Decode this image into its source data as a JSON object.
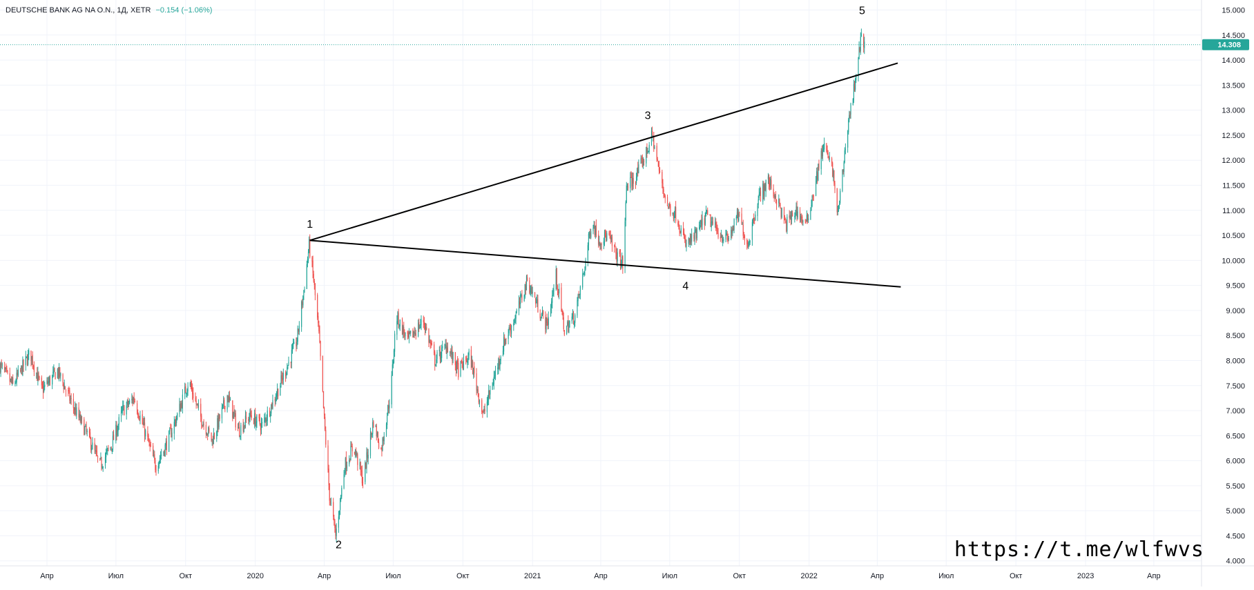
{
  "header": {
    "symbol": "DEUTSCHE BANK AG NA O.N., 1Д, XETR",
    "change": "−0.154 (−1.06%)"
  },
  "watermark": "https://t.me/wlfwvs",
  "colors": {
    "up": "#26a69a",
    "down": "#ef5350",
    "grid": "#f0f3fa",
    "axis_text": "#131722",
    "price_line": "#26a69a",
    "pattern_line": "#000000"
  },
  "chart_data": {
    "type": "candlestick",
    "x_axis_labels": [
      "Апр",
      "Июл",
      "Окт",
      "2020",
      "Апр",
      "Июл",
      "Окт",
      "2021",
      "Апр",
      "Июл",
      "Окт",
      "2022",
      "Апр",
      "Июл",
      "Окт",
      "2023",
      "Апр"
    ],
    "x_axis_dates": [
      "2019-04",
      "2019-07",
      "2019-10",
      "2020-01",
      "2020-04",
      "2020-07",
      "2020-10",
      "2021-01",
      "2021-04",
      "2021-07",
      "2021-10",
      "2022-01",
      "2022-04",
      "2022-07",
      "2022-10",
      "2023-01",
      "2023-04"
    ],
    "x_range": [
      "2019-01-29",
      "2023-06-03"
    ],
    "y_ticks": [
      "15.000",
      "14.500",
      "14.000",
      "13.500",
      "13.000",
      "12.500",
      "12.000",
      "11.500",
      "11.000",
      "10.500",
      "10.000",
      "9.500",
      "9.000",
      "8.500",
      "8.000",
      "7.500",
      "7.000",
      "6.500",
      "6.000",
      "5.500",
      "5.000",
      "4.500",
      "4.000"
    ],
    "ylim": [
      3.9,
      15.2
    ],
    "last_price": 14.308,
    "last_price_label": "14.308",
    "price_path": [
      [
        "2019-01-29",
        7.9
      ],
      [
        "2019-02-15",
        7.5
      ],
      [
        "2019-03-10",
        8.15
      ],
      [
        "2019-03-25",
        7.4
      ],
      [
        "2019-04-15",
        7.8
      ],
      [
        "2019-05-05",
        7.1
      ],
      [
        "2019-05-25",
        6.5
      ],
      [
        "2019-06-10",
        5.9
      ],
      [
        "2019-06-25",
        6.3
      ],
      [
        "2019-07-10",
        7.0
      ],
      [
        "2019-07-25",
        7.25
      ],
      [
        "2019-08-10",
        6.5
      ],
      [
        "2019-08-22",
        5.9
      ],
      [
        "2019-09-05",
        6.3
      ],
      [
        "2019-09-20",
        6.9
      ],
      [
        "2019-10-05",
        7.6
      ],
      [
        "2019-10-20",
        6.9
      ],
      [
        "2019-11-05",
        6.4
      ],
      [
        "2019-11-25",
        7.3
      ],
      [
        "2019-12-10",
        6.6
      ],
      [
        "2019-12-25",
        6.9
      ],
      [
        "2020-01-10",
        6.7
      ],
      [
        "2020-01-25",
        7.2
      ],
      [
        "2020-02-10",
        7.8
      ],
      [
        "2020-02-25",
        8.4
      ],
      [
        "2020-03-05",
        9.4
      ],
      [
        "2020-03-12",
        10.3
      ],
      [
        "2020-03-18",
        9.6
      ],
      [
        "2020-03-25",
        8.5
      ],
      [
        "2020-04-01",
        6.8
      ],
      [
        "2020-04-08",
        5.3
      ],
      [
        "2020-04-16",
        4.5
      ],
      [
        "2020-04-28",
        5.9
      ],
      [
        "2020-05-10",
        6.3
      ],
      [
        "2020-05-22",
        5.6
      ],
      [
        "2020-06-05",
        6.8
      ],
      [
        "2020-06-15",
        6.2
      ],
      [
        "2020-06-28",
        7.4
      ],
      [
        "2020-07-05",
        8.9
      ],
      [
        "2020-07-20",
        8.4
      ],
      [
        "2020-08-10",
        8.8
      ],
      [
        "2020-08-25",
        8.0
      ],
      [
        "2020-09-10",
        8.3
      ],
      [
        "2020-09-25",
        7.8
      ],
      [
        "2020-10-10",
        8.1
      ],
      [
        "2020-10-28",
        6.9
      ],
      [
        "2020-11-10",
        7.6
      ],
      [
        "2020-11-25",
        8.4
      ],
      [
        "2020-12-10",
        8.9
      ],
      [
        "2020-12-25",
        9.6
      ],
      [
        "2021-01-10",
        9.0
      ],
      [
        "2021-01-20",
        8.7
      ],
      [
        "2021-02-01",
        9.7
      ],
      [
        "2021-02-12",
        8.6
      ],
      [
        "2021-02-26",
        8.9
      ],
      [
        "2021-03-10",
        9.8
      ],
      [
        "2021-03-20",
        10.8
      ],
      [
        "2021-03-30",
        10.4
      ],
      [
        "2021-04-10",
        10.5
      ],
      [
        "2021-04-22",
        10.1
      ],
      [
        "2021-05-01",
        9.9
      ],
      [
        "2021-05-05",
        11.5
      ],
      [
        "2021-05-15",
        11.6
      ],
      [
        "2021-05-30",
        12.1
      ],
      [
        "2021-06-08",
        12.5
      ],
      [
        "2021-06-18",
        11.7
      ],
      [
        "2021-06-28",
        11.1
      ],
      [
        "2021-07-10",
        10.9
      ],
      [
        "2021-07-22",
        10.3
      ],
      [
        "2021-08-05",
        10.5
      ],
      [
        "2021-08-18",
        10.9
      ],
      [
        "2021-09-01",
        10.6
      ],
      [
        "2021-09-15",
        10.4
      ],
      [
        "2021-09-30",
        10.9
      ],
      [
        "2021-10-12",
        10.3
      ],
      [
        "2021-10-25",
        11.2
      ],
      [
        "2021-11-08",
        11.6
      ],
      [
        "2021-11-20",
        11.2
      ],
      [
        "2021-12-01",
        10.7
      ],
      [
        "2021-12-15",
        11.0
      ],
      [
        "2021-12-28",
        10.7
      ],
      [
        "2022-01-10",
        11.6
      ],
      [
        "2022-01-20",
        12.3
      ],
      [
        "2022-02-01",
        11.8
      ],
      [
        "2022-02-08",
        10.9
      ],
      [
        "2022-02-14",
        11.7
      ],
      [
        "2022-02-21",
        12.7
      ],
      [
        "2022-03-01",
        13.4
      ],
      [
        "2022-03-07",
        14.1
      ],
      [
        "2022-03-12",
        14.5
      ],
      [
        "2022-03-15",
        14.308
      ]
    ],
    "trendlines": [
      {
        "name": "upper-trendline",
        "from": [
          "2020-03-13",
          10.4
        ],
        "to": [
          "2022-04-28",
          13.94
        ]
      },
      {
        "name": "lower-trendline",
        "from": [
          "2020-03-13",
          10.4
        ],
        "to": [
          "2022-05-02",
          9.47
        ]
      }
    ],
    "wave_labels": [
      {
        "text": "1",
        "at": [
          "2020-03-13",
          10.65
        ]
      },
      {
        "text": "2",
        "at": [
          "2020-04-20",
          4.25
        ]
      },
      {
        "text": "3",
        "at": [
          "2021-06-02",
          12.82
        ]
      },
      {
        "text": "4",
        "at": [
          "2021-07-22",
          9.42
        ]
      },
      {
        "text": "5",
        "at": [
          "2022-03-12",
          14.92
        ]
      }
    ]
  }
}
